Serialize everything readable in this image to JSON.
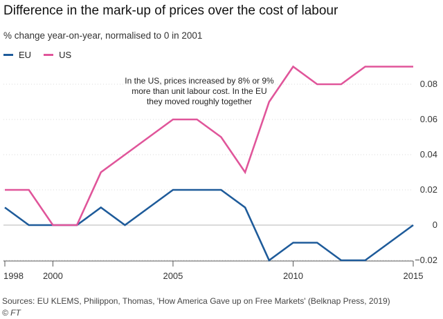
{
  "chart_data": {
    "type": "line",
    "title": "Difference in the mark-up of prices over the cost of labour",
    "subtitle": "% change year-on-year, normalised to 0 in 2001",
    "x": [
      1998,
      1999,
      2000,
      2001,
      2002,
      2003,
      2004,
      2005,
      2006,
      2007,
      2008,
      2009,
      2010,
      2011,
      2012,
      2013,
      2014,
      2015
    ],
    "series": [
      {
        "name": "EU",
        "color": "#1e5b9a",
        "values": [
          0.01,
          0.0,
          0.0,
          0.0,
          0.01,
          0.0,
          0.01,
          0.02,
          0.02,
          0.02,
          0.01,
          -0.02,
          -0.01,
          -0.01,
          -0.02,
          -0.02,
          -0.01,
          0.0
        ]
      },
      {
        "name": "US",
        "color": "#e0559a",
        "values": [
          0.02,
          0.02,
          0.0,
          0.0,
          0.03,
          0.04,
          0.05,
          0.06,
          0.06,
          0.05,
          0.03,
          0.07,
          0.09,
          0.08,
          0.08,
          0.09,
          0.09,
          0.09
        ]
      }
    ],
    "xlim": [
      1998,
      2015
    ],
    "ylim": [
      -0.02,
      0.095
    ],
    "y_ticks": [
      -0.02,
      0,
      0.02,
      0.04,
      0.06,
      0.08
    ],
    "y_tick_labels": [
      "−0.02",
      "0",
      "0.02",
      "0.04",
      "0.06",
      "0.08"
    ],
    "x_ticks": [
      1998,
      2000,
      2005,
      2010,
      2015
    ],
    "x_tick_labels": [
      "1998",
      "2000",
      "2005",
      "2010",
      "2015"
    ],
    "annotation": [
      "In the US, prices increased by 8% or 9%",
      "more than unit labour cost. In the EU",
      "they moved roughly together"
    ],
    "legend": [
      "EU",
      "US"
    ],
    "grid": true
  },
  "footer": {
    "source": "Sources: EU KLEMS, Philippon, Thomas, 'How America Gave up on Free Markets' (Belknap Press, 2019)",
    "copyright": "© FT"
  }
}
